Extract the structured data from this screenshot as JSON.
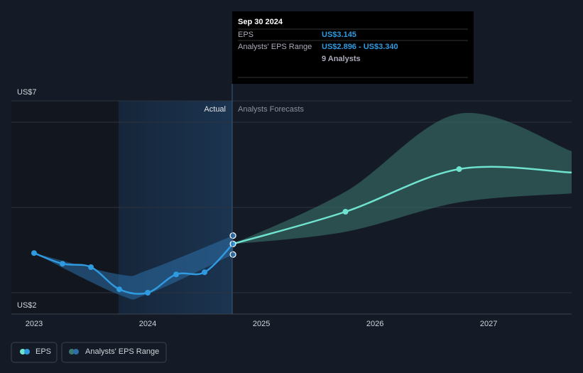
{
  "chart_data": {
    "type": "line",
    "y_labels": [
      "US$7",
      "US$2"
    ],
    "ylim": [
      1.5,
      6.5
    ],
    "gridlines": [
      2,
      4,
      6
    ],
    "xlim": [
      2022.8,
      2027.73
    ],
    "xticks": [
      2023,
      2024,
      2025,
      2026,
      2027
    ],
    "region_labels": [
      "Actual",
      "Analysts Forecasts"
    ],
    "series": [
      {
        "name": "EPS",
        "color": "#2f9ae0",
        "x": [
          2023,
          2023.25,
          2023.5,
          2023.75,
          2024,
          2024.25,
          2024.5,
          2024.75
        ],
        "values": [
          2.93,
          2.68,
          2.6,
          2.08,
          2.0,
          2.43,
          2.48,
          3.145
        ]
      },
      {
        "name": "EPS Forecast",
        "color": "#6fe3d0",
        "x": [
          2024.75,
          2025.74,
          2026.74,
          2027.73
        ],
        "values": [
          3.145,
          3.9,
          4.9,
          4.82
        ]
      }
    ],
    "ranges": [
      {
        "name": "Analysts' EPS Range",
        "color": "#2c6fa8",
        "x": [
          2023,
          2023.75,
          2024,
          2024.75
        ],
        "low": [
          2.93,
          1.95,
          1.97,
          2.896
        ],
        "high": [
          2.93,
          2.43,
          2.53,
          3.34
        ]
      },
      {
        "name": "Analysts' EPS Range Forecast",
        "color": "#3c7a70",
        "x": [
          2024.75,
          2025.74,
          2026.74,
          2027.73
        ],
        "low": [
          3.14,
          3.43,
          4.12,
          4.33
        ],
        "high": [
          3.145,
          4.37,
          6.2,
          5.32
        ]
      }
    ],
    "legend": [
      "EPS",
      "Analysts' EPS Range"
    ],
    "tooltip": {
      "date": "Sep 30 2024",
      "rows": [
        [
          "EPS",
          "US$3.145"
        ],
        [
          "Analysts' EPS Range",
          "US$2.896 - US$3.340"
        ],
        [
          "",
          "9 Analysts"
        ]
      ]
    }
  }
}
